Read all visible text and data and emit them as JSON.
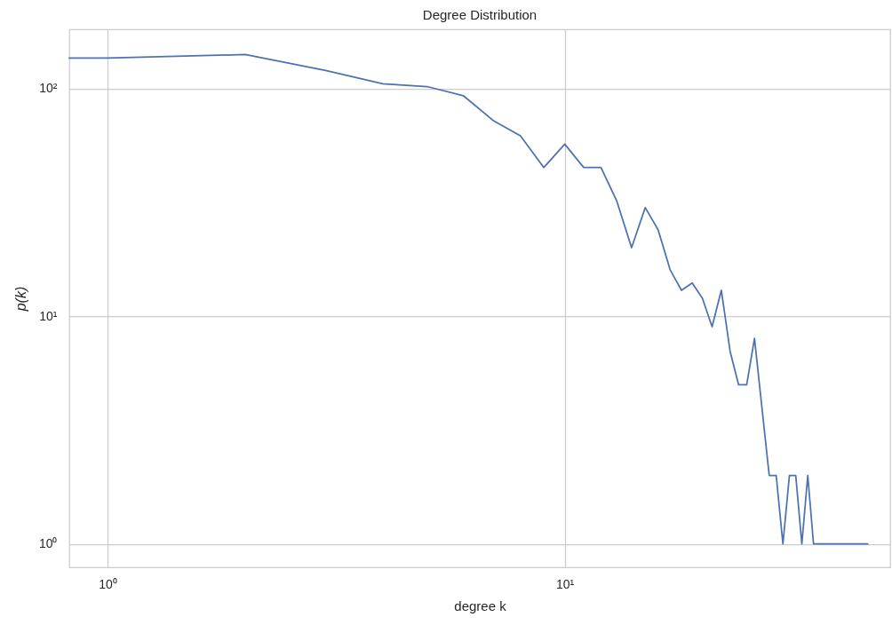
{
  "chart_data": {
    "type": "line",
    "title": "Degree Distribution",
    "xlabel": "degree k",
    "ylabel": "p(k)",
    "x": [
      0.825,
      1,
      2,
      3,
      4,
      5,
      6,
      7,
      8,
      9,
      10,
      11,
      12,
      13,
      14,
      15,
      16,
      17,
      18,
      19,
      20,
      21,
      22,
      23,
      24,
      25,
      26,
      28,
      29,
      30,
      31,
      32,
      33,
      34,
      35,
      46
    ],
    "series": [
      {
        "color": "#4c72b0",
        "values": [
          136,
          136,
          141,
          120,
          105,
          102,
          93,
          72,
          62,
          45,
          57,
          45,
          45,
          32,
          20,
          30,
          24,
          16,
          13,
          14,
          12,
          9,
          13,
          7,
          5,
          5,
          8,
          2,
          2,
          1,
          2,
          2,
          1,
          2,
          1,
          1
        ]
      }
    ],
    "log": "xy",
    "xlim": [
      0.825,
      51.5
    ],
    "ylim": [
      0.79,
      182
    ],
    "xticks": [
      {
        "value": 1,
        "label": "10⁰"
      },
      {
        "value": 10,
        "label": "10¹"
      }
    ],
    "yticks": [
      {
        "value": 1,
        "label": "10⁰"
      },
      {
        "value": 10,
        "label": "10¹"
      },
      {
        "value": 100,
        "label": "10²"
      }
    ],
    "grid": true
  }
}
